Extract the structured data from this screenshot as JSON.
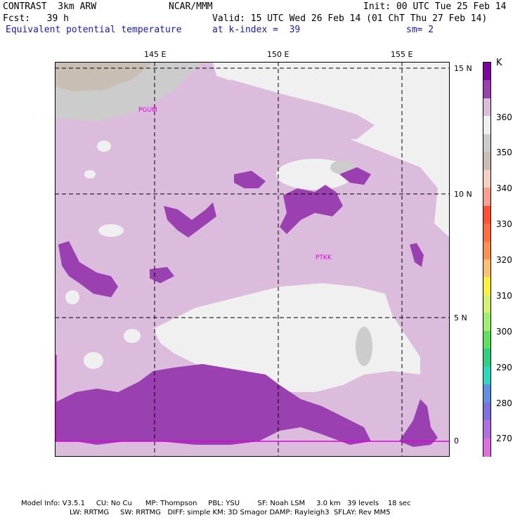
{
  "header": {
    "model": "CONTRAST  3km ARW",
    "center": "NCAR/MMM",
    "init": "Init: 00 UTC Tue 25 Feb 14",
    "fcst": "Fcst:   39 h",
    "valid": "Valid: 15 UTC Wed 26 Feb 14 (01 ChT Thu 27 Feb 14)",
    "field": "Equivalent potential temperature",
    "level": "at k-index =  39",
    "smooth": "sm= 2"
  },
  "axes": {
    "lon_labels": [
      "145 E",
      "150 E",
      "155 E"
    ],
    "lat_labels": [
      "15 N",
      "10 N",
      "5 N",
      "0"
    ]
  },
  "stations": [
    "PGUM",
    "PTKK"
  ],
  "colorbar": {
    "unit": "K",
    "labels": [
      "360",
      "350",
      "340",
      "330",
      "320",
      "310",
      "300",
      "290",
      "280",
      "270"
    ],
    "colors": [
      "#c0c0c0",
      "#1fd89a",
      "#7f00a0",
      "#9a40b0",
      "#dcbcdc",
      "#f0f0f0",
      "#cccccc",
      "#c8beb4",
      "#f6d0c0",
      "#f8a090",
      "#ff5030",
      "#ff7040",
      "#ff9050",
      "#ffc070",
      "#fff040",
      "#d8f070",
      "#a0f070",
      "#60e060",
      "#30d080",
      "#30d8c0",
      "#6090e0",
      "#8070e0",
      "#b070e0",
      "#e070e0"
    ]
  },
  "model_info": {
    "line1": "Model Info: V3.5.1     CU: No Cu      MP: Thompson     PBL: YSU        SF: Noah LSM     3.0 km   39 levels    18 sec",
    "line2": "LW: RRTMG     SW: RRTMG   DIFF: simple KM: 3D Smagor DAMP: Rayleigh3  SFLAY: Rev MM5"
  }
}
